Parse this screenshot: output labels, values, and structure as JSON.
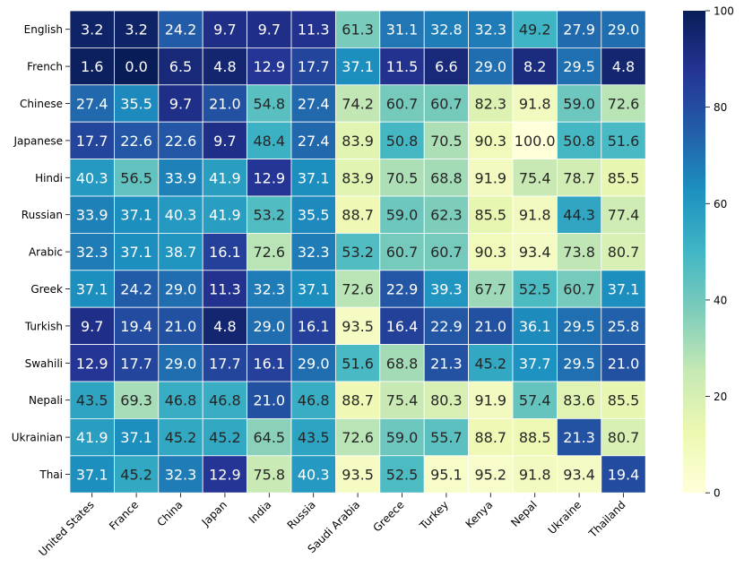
{
  "chart_data": {
    "type": "heatmap",
    "title": "",
    "xlabel": "",
    "ylabel": "",
    "rows": [
      "English",
      "French",
      "Chinese",
      "Japanese",
      "Hindi",
      "Russian",
      "Arabic",
      "Greek",
      "Turkish",
      "Swahili",
      "Nepali",
      "Ukrainian",
      "Thai"
    ],
    "columns": [
      "United States",
      "France",
      "China",
      "Japan",
      "India",
      "Russia",
      "Saudi Arabia",
      "Greece",
      "Turkey",
      "Kenya",
      "Nepal",
      "Ukraine",
      "Thailand"
    ],
    "values": [
      [
        3.2,
        3.2,
        24.2,
        9.7,
        9.7,
        11.3,
        61.3,
        31.1,
        32.8,
        32.3,
        49.2,
        27.9,
        29.0
      ],
      [
        1.6,
        0.0,
        6.5,
        4.8,
        12.9,
        17.7,
        37.1,
        11.5,
        6.6,
        29.0,
        8.2,
        29.5,
        4.8
      ],
      [
        27.4,
        35.5,
        9.7,
        21.0,
        54.8,
        27.4,
        74.2,
        60.7,
        60.7,
        82.3,
        91.8,
        59.0,
        72.6
      ],
      [
        17.7,
        22.6,
        22.6,
        9.7,
        48.4,
        27.4,
        83.9,
        50.8,
        70.5,
        90.3,
        100.0,
        50.8,
        51.6
      ],
      [
        40.3,
        56.5,
        33.9,
        41.9,
        12.9,
        37.1,
        83.9,
        70.5,
        68.8,
        91.9,
        75.4,
        78.7,
        85.5
      ],
      [
        33.9,
        37.1,
        40.3,
        41.9,
        53.2,
        35.5,
        88.7,
        59.0,
        62.3,
        85.5,
        91.8,
        44.3,
        77.4
      ],
      [
        32.3,
        37.1,
        38.7,
        16.1,
        72.6,
        32.3,
        53.2,
        60.7,
        60.7,
        90.3,
        93.4,
        73.8,
        80.7
      ],
      [
        37.1,
        24.2,
        29.0,
        11.3,
        32.3,
        37.1,
        72.6,
        22.9,
        39.3,
        67.7,
        52.5,
        60.7,
        37.1
      ],
      [
        9.7,
        19.4,
        21.0,
        4.8,
        29.0,
        16.1,
        93.5,
        16.4,
        22.9,
        21.0,
        36.1,
        29.5,
        25.8
      ],
      [
        12.9,
        17.7,
        29.0,
        17.7,
        16.1,
        29.0,
        51.6,
        68.8,
        21.3,
        45.2,
        37.7,
        29.5,
        21.0
      ],
      [
        43.5,
        69.3,
        46.8,
        46.8,
        21.0,
        46.8,
        88.7,
        75.4,
        80.3,
        91.9,
        57.4,
        83.6,
        85.5
      ],
      [
        41.9,
        37.1,
        45.2,
        45.2,
        64.5,
        43.5,
        72.6,
        59.0,
        55.7,
        88.7,
        88.5,
        21.3,
        80.7
      ],
      [
        37.1,
        45.2,
        32.3,
        12.9,
        75.8,
        40.3,
        93.5,
        52.5,
        95.1,
        95.2,
        91.8,
        93.4,
        19.4
      ]
    ],
    "vmin": 0,
    "vmax": 100,
    "colormap": "YlGnBu",
    "colorbar_ticks": [
      0,
      20,
      40,
      60,
      80,
      100
    ],
    "annotations": true,
    "value_format": "one-decimal"
  }
}
